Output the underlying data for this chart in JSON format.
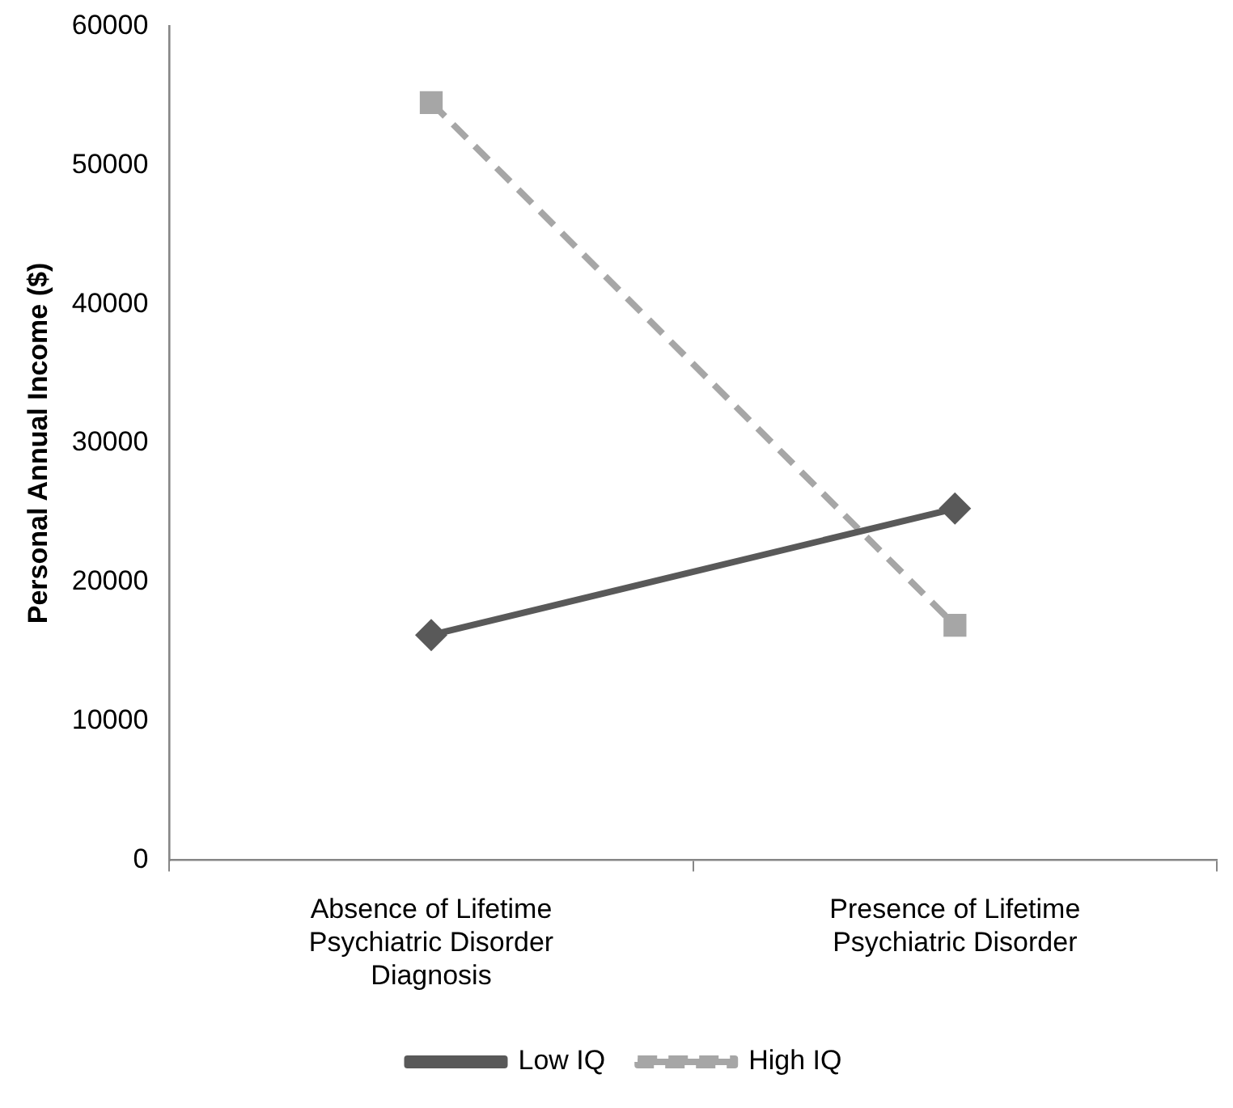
{
  "chart_data": {
    "type": "line",
    "ylabel": "Personal Annual Income ($)",
    "categories": [
      "Absence of Lifetime Psychiatric Disorder Diagnosis",
      "Presence of Lifetime Psychiatric Disorder"
    ],
    "series": [
      {
        "name": "Low IQ",
        "color": "#595959",
        "values": [
          16200,
          25300
        ],
        "marker": "diamond",
        "line_style": "solid"
      },
      {
        "name": "High IQ",
        "color": "#a6a6a6",
        "values": [
          54500,
          16900
        ],
        "marker": "square",
        "line_style": "dashed"
      }
    ],
    "ylim": [
      0,
      60000
    ],
    "yticks": [
      0,
      10000,
      20000,
      30000,
      40000,
      50000,
      60000
    ],
    "legend": "bottom"
  }
}
